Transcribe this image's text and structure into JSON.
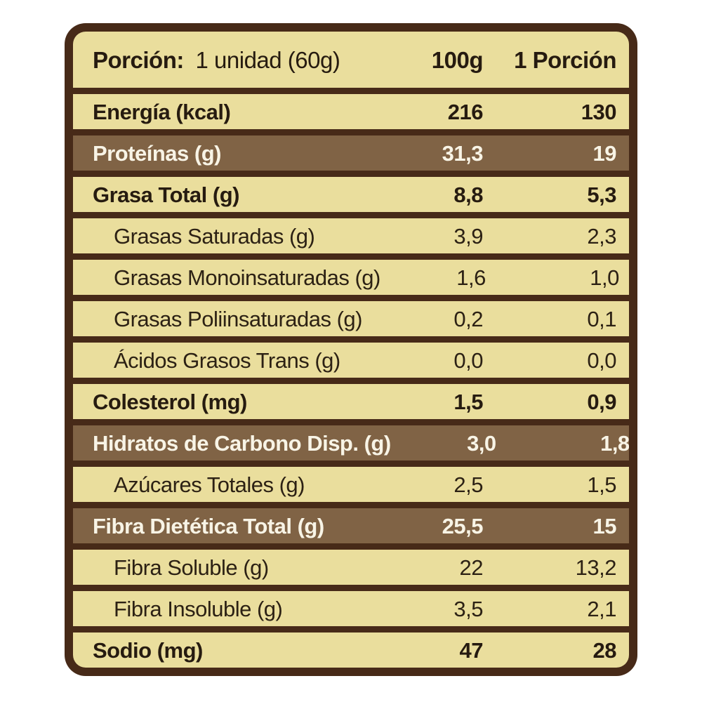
{
  "header": {
    "serving_prefix": "Porción:",
    "serving_value": "1 unidad (60g)",
    "col_100g": "100g",
    "col_portion": "1 Porción"
  },
  "rows": [
    {
      "label": "Energía (kcal)",
      "per_100g": "216",
      "per_portion": "130",
      "style": "bold"
    },
    {
      "label": "Proteínas (g)",
      "per_100g": "31,3",
      "per_portion": "19",
      "style": "highlight"
    },
    {
      "label": "Grasa Total (g)",
      "per_100g": "8,8",
      "per_portion": "5,3",
      "style": "bold"
    },
    {
      "label": "Grasas Saturadas (g)",
      "per_100g": "3,9",
      "per_portion": "2,3",
      "style": "sub"
    },
    {
      "label": "Grasas Monoinsaturadas (g)",
      "per_100g": "1,6",
      "per_portion": "1,0",
      "style": "sub"
    },
    {
      "label": "Grasas Poliinsaturadas (g)",
      "per_100g": "0,2",
      "per_portion": "0,1",
      "style": "sub"
    },
    {
      "label": "Ácidos Grasos Trans (g)",
      "per_100g": "0,0",
      "per_portion": "0,0",
      "style": "sub"
    },
    {
      "label": "Colesterol (mg)",
      "per_100g": "1,5",
      "per_portion": "0,9",
      "style": "bold"
    },
    {
      "label": "Hidratos de Carbono Disp. (g)",
      "per_100g": "3,0",
      "per_portion": "1,8",
      "style": "highlight"
    },
    {
      "label": "Azúcares Totales (g)",
      "per_100g": "2,5",
      "per_portion": "1,5",
      "style": "sub"
    },
    {
      "label": "Fibra Dietética Total (g)",
      "per_100g": "25,5",
      "per_portion": "15",
      "style": "highlight"
    },
    {
      "label": "Fibra Soluble (g)",
      "per_100g": "22",
      "per_portion": "13,2",
      "style": "sub"
    },
    {
      "label": "Fibra Insoluble (g)",
      "per_100g": "3,5",
      "per_portion": "2,1",
      "style": "sub"
    },
    {
      "label": "Sodio (mg)",
      "per_100g": "47",
      "per_portion": "28",
      "style": "bold"
    }
  ],
  "colors": {
    "frame_brown": "#472A18",
    "row_cream": "#EADE9D",
    "highlight_brown": "#806345",
    "text_dark": "#261B10",
    "text_light": "#F8F4E6",
    "page_background": "#FFFFFF"
  }
}
